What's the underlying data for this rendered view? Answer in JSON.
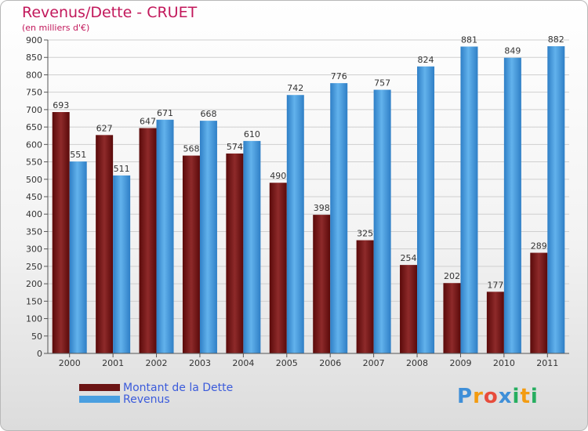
{
  "header": {
    "title": "Revenus/Dette - CRUET",
    "subtitle": "(en milliers d'€)"
  },
  "chart_data": {
    "type": "bar",
    "title": "Revenus/Dette - CRUET",
    "subtitle": "(en milliers d'€)",
    "categories": [
      "2000",
      "2001",
      "2002",
      "2003",
      "2004",
      "2005",
      "2006",
      "2007",
      "2008",
      "2009",
      "2010",
      "2011"
    ],
    "series": [
      {
        "name": "Montant de la Dette",
        "color": "#7a1c1c",
        "values": [
          693,
          627,
          647,
          568,
          574,
          490,
          398,
          325,
          254,
          202,
          177,
          289
        ]
      },
      {
        "name": "Revenus",
        "color": "#4a9fe0",
        "values": [
          551,
          511,
          671,
          668,
          610,
          742,
          776,
          757,
          824,
          881,
          849,
          882
        ]
      }
    ],
    "ylim": [
      0,
      900
    ],
    "ytick_step": 50,
    "grid": true,
    "legend_position": "bottom-left"
  },
  "legend": {
    "items": [
      {
        "label": "Montant de la Dette",
        "color": "#7a1c1c"
      },
      {
        "label": "Revenus",
        "color": "#4a9fe0"
      }
    ]
  },
  "logo": {
    "letters": [
      "P",
      "r",
      "o",
      "x",
      "i",
      "t",
      "i"
    ],
    "colors": [
      "#3f8fd8",
      "#f39c12",
      "#e74c3c",
      "#3f8fd8",
      "#27ae60",
      "#f39c12",
      "#27ae60"
    ]
  }
}
